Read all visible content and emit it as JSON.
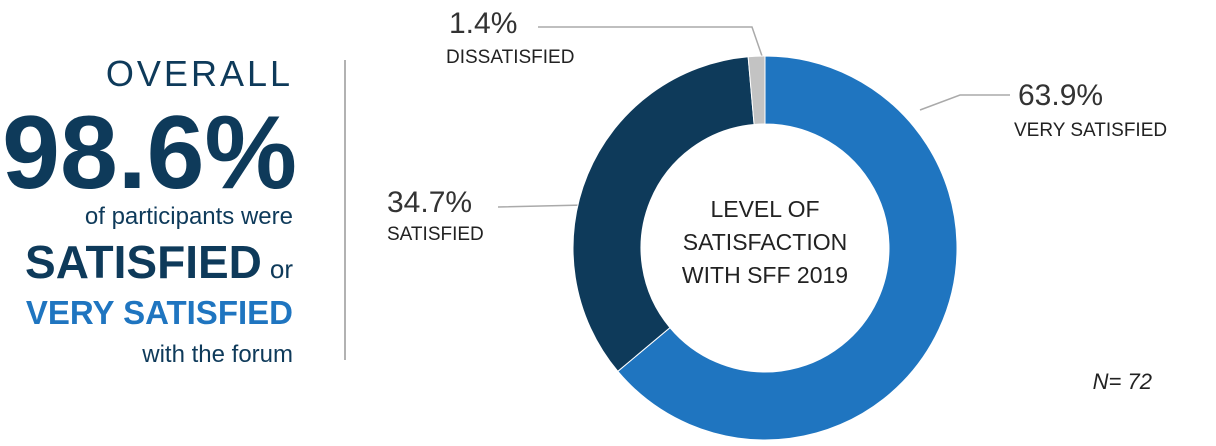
{
  "summary": {
    "heading": "OVERALL",
    "figure": "98.6%",
    "line1": "of participants were",
    "satisfied": "SATISFIED",
    "or": "or",
    "very_satisfied": "VERY SATISFIED",
    "line2": "with the forum"
  },
  "chart_data": {
    "type": "pie",
    "donut": true,
    "center_label": [
      "LEVEL OF",
      "SATISFACTION",
      "WITH SFF 2019"
    ],
    "categories": [
      "VERY SATISFIED",
      "SATISFIED",
      "DISSATISFIED"
    ],
    "values": [
      63.9,
      34.7,
      1.4
    ],
    "value_labels": [
      "63.9%",
      "34.7%",
      "1.4%"
    ],
    "colors": [
      "#1f75c0",
      "#0e3a5a",
      "#c3c3c3"
    ],
    "note": "N= 72"
  }
}
